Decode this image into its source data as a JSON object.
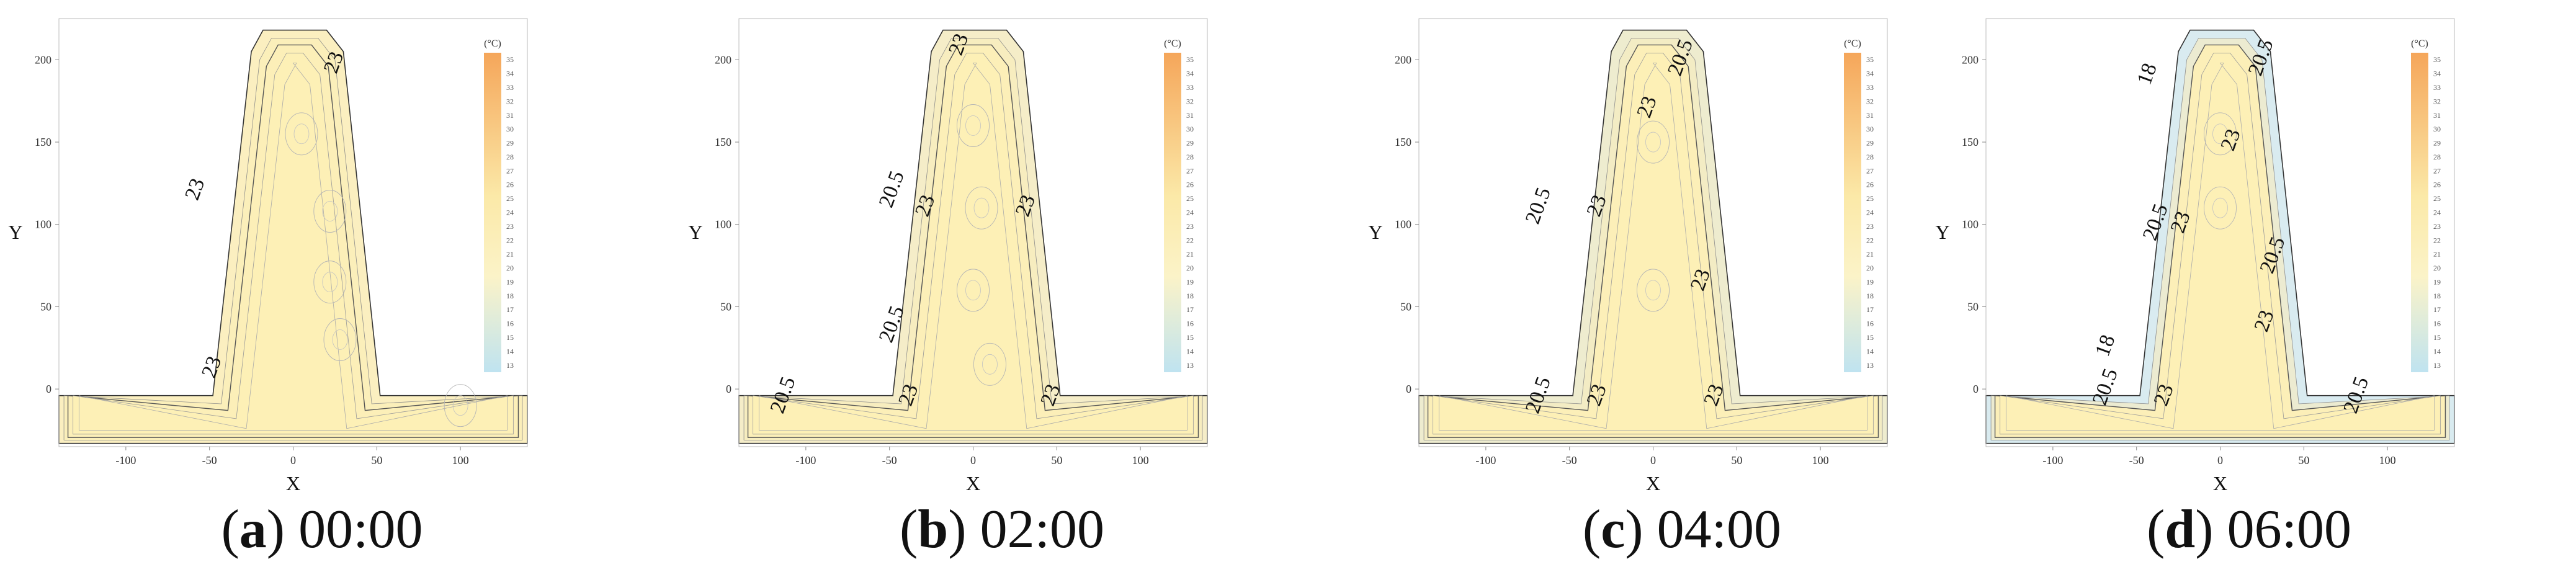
{
  "figure": {
    "panels": [
      {
        "letter": "a",
        "time": "00:00"
      },
      {
        "letter": "b",
        "time": "02:00"
      },
      {
        "letter": "c",
        "time": "04:00"
      },
      {
        "letter": "d",
        "time": "06:00"
      }
    ]
  },
  "chart_data": [
    {
      "type": "contour",
      "panel": "a",
      "title": "(a) 00:00",
      "xlabel": "X",
      "ylabel": "Y",
      "xlim": [
        -140,
        140
      ],
      "ylim": [
        -35,
        225
      ],
      "xticks": [
        -100,
        -50,
        0,
        50,
        100
      ],
      "yticks": [
        0,
        50,
        100,
        150,
        200
      ],
      "x_tick_labels": [
        "-100",
        "-50",
        "0",
        "50",
        "100"
      ],
      "y_tick_labels": [
        "0",
        "50",
        "100",
        "150",
        "200"
      ],
      "colorbar": {
        "unit": "(°C)",
        "min": 13,
        "max": 35,
        "step": 1,
        "labels": [
          "35",
          "34",
          "33",
          "32",
          "31",
          "30",
          "29",
          "28",
          "27",
          "26",
          "25",
          "24",
          "23",
          "22",
          "21",
          "20",
          "19",
          "18",
          "17",
          "16",
          "15",
          "14",
          "13"
        ]
      },
      "contour_labels": [
        {
          "text": "23",
          "x": 28,
          "y": 197
        },
        {
          "text": "23",
          "x": -55,
          "y": 120
        },
        {
          "text": "23",
          "x": -45,
          "y": 12
        }
      ],
      "hotspots": [
        {
          "x": 5,
          "y": 155
        },
        {
          "x": 22,
          "y": 108
        },
        {
          "x": 22,
          "y": 65
        },
        {
          "x": 28,
          "y": 30
        },
        {
          "x": 100,
          "y": -10
        }
      ]
    },
    {
      "type": "contour",
      "panel": "b",
      "title": "(b) 02:00",
      "xlabel": "X",
      "ylabel": "Y",
      "xlim": [
        -140,
        140
      ],
      "ylim": [
        -35,
        225
      ],
      "xticks": [
        -100,
        -50,
        0,
        50,
        100
      ],
      "yticks": [
        0,
        50,
        100,
        150,
        200
      ],
      "x_tick_labels": [
        "-100",
        "-50",
        "0",
        "50",
        "100"
      ],
      "y_tick_labels": [
        "0",
        "50",
        "100",
        "150",
        "200"
      ],
      "colorbar": {
        "unit": "(°C)",
        "min": 13,
        "max": 35,
        "step": 1,
        "labels": [
          "35",
          "34",
          "33",
          "32",
          "31",
          "30",
          "29",
          "28",
          "27",
          "26",
          "25",
          "24",
          "23",
          "22",
          "21",
          "20",
          "19",
          "18",
          "17",
          "16",
          "15",
          "14",
          "13"
        ]
      },
      "contour_labels": [
        {
          "text": "23",
          "x": -5,
          "y": 208
        },
        {
          "text": "20.5",
          "x": -45,
          "y": 120
        },
        {
          "text": "23",
          "x": -25,
          "y": 110
        },
        {
          "text": "23",
          "x": 35,
          "y": 110
        },
        {
          "text": "20.5",
          "x": -45,
          "y": 38
        },
        {
          "text": "20.5",
          "x": -110,
          "y": -5
        },
        {
          "text": "23",
          "x": -35,
          "y": -5
        },
        {
          "text": "23",
          "x": 50,
          "y": -5
        }
      ],
      "hotspots": [
        {
          "x": 0,
          "y": 160
        },
        {
          "x": 5,
          "y": 110
        },
        {
          "x": 0,
          "y": 60
        },
        {
          "x": 10,
          "y": 15
        }
      ]
    },
    {
      "type": "contour",
      "panel": "c",
      "title": "(c) 04:00",
      "xlabel": "X",
      "ylabel": "Y",
      "xlim": [
        -140,
        140
      ],
      "ylim": [
        -35,
        225
      ],
      "xticks": [
        -100,
        -50,
        0,
        50,
        100
      ],
      "yticks": [
        0,
        50,
        100,
        150,
        200
      ],
      "x_tick_labels": [
        "-100",
        "-50",
        "0",
        "50",
        "100"
      ],
      "y_tick_labels": [
        "0",
        "50",
        "100",
        "150",
        "200"
      ],
      "colorbar": {
        "unit": "(°C)",
        "min": 13,
        "max": 35,
        "step": 1,
        "labels": [
          "35",
          "34",
          "33",
          "32",
          "31",
          "30",
          "29",
          "28",
          "27",
          "26",
          "25",
          "24",
          "23",
          "22",
          "21",
          "20",
          "19",
          "18",
          "17",
          "16",
          "15",
          "14",
          "13"
        ]
      },
      "contour_labels": [
        {
          "text": "20.5",
          "x": 20,
          "y": 200
        },
        {
          "text": "23",
          "x": 0,
          "y": 170
        },
        {
          "text": "20.5",
          "x": -65,
          "y": 110
        },
        {
          "text": "23",
          "x": -30,
          "y": 110
        },
        {
          "text": "23",
          "x": 32,
          "y": 65
        },
        {
          "text": "20.5",
          "x": -65,
          "y": -5
        },
        {
          "text": "23",
          "x": -30,
          "y": -5
        },
        {
          "text": "23",
          "x": 40,
          "y": -5
        }
      ],
      "hotspots": [
        {
          "x": 0,
          "y": 150
        },
        {
          "x": 0,
          "y": 60
        }
      ]
    },
    {
      "type": "contour",
      "panel": "d",
      "title": "(d) 06:00",
      "xlabel": "X",
      "ylabel": "Y",
      "xlim": [
        -140,
        140
      ],
      "ylim": [
        -35,
        225
      ],
      "xticks": [
        -100,
        -50,
        0,
        50,
        100
      ],
      "yticks": [
        0,
        50,
        100,
        150,
        200
      ],
      "x_tick_labels": [
        "-100",
        "-50",
        "0",
        "50",
        "100"
      ],
      "y_tick_labels": [
        "0",
        "50",
        "100",
        "150",
        "200"
      ],
      "colorbar": {
        "unit": "(°C)",
        "min": 13,
        "max": 35,
        "step": 1,
        "labels": [
          "35",
          "34",
          "33",
          "32",
          "31",
          "30",
          "29",
          "28",
          "27",
          "26",
          "25",
          "24",
          "23",
          "22",
          "21",
          "20",
          "19",
          "18",
          "17",
          "16",
          "15",
          "14",
          "13"
        ]
      },
      "contour_labels": [
        {
          "text": "18",
          "x": -40,
          "y": 190
        },
        {
          "text": "20.5",
          "x": 28,
          "y": 200
        },
        {
          "text": "23",
          "x": 10,
          "y": 150
        },
        {
          "text": "20.5",
          "x": -35,
          "y": 100
        },
        {
          "text": "23",
          "x": -20,
          "y": 100
        },
        {
          "text": "20.5",
          "x": 35,
          "y": 80
        },
        {
          "text": "23",
          "x": 30,
          "y": 40
        },
        {
          "text": "18",
          "x": -65,
          "y": 25
        },
        {
          "text": "20.5",
          "x": -65,
          "y": 0
        },
        {
          "text": "23",
          "x": -30,
          "y": -5
        },
        {
          "text": "20.5",
          "x": 85,
          "y": -5
        }
      ],
      "hotspots": [
        {
          "x": 0,
          "y": 155
        },
        {
          "x": 0,
          "y": 110
        }
      ]
    }
  ]
}
